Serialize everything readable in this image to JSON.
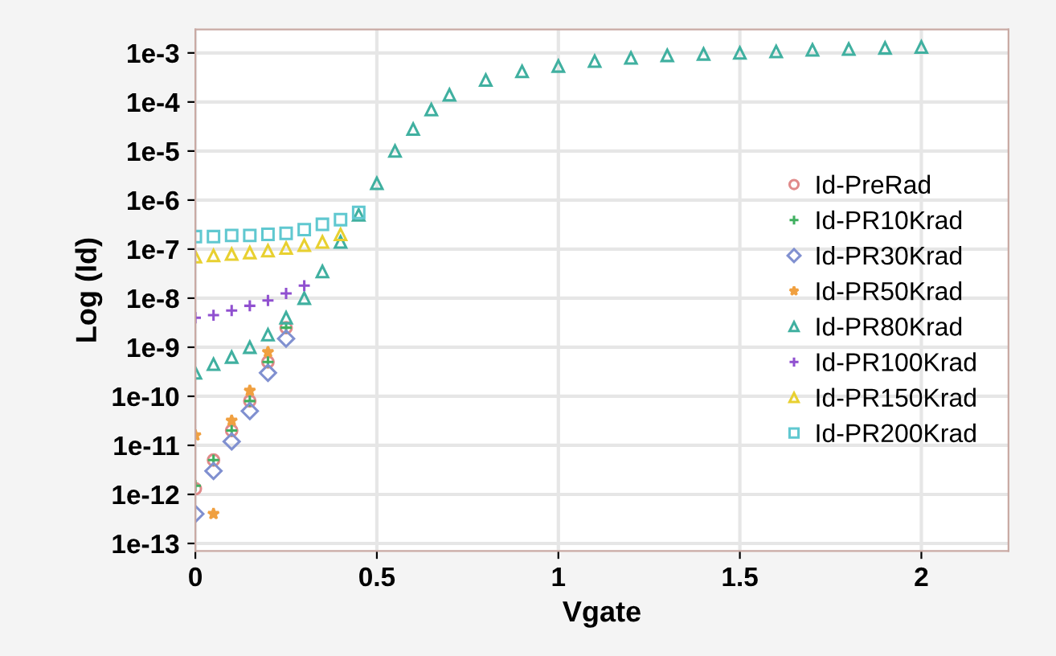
{
  "chart_data": {
    "type": "scatter",
    "xlabel": "Vgate",
    "ylabel": "Log (Id)",
    "log": "y",
    "grid": true,
    "legend": "right",
    "xlim": [
      0,
      2.24
    ],
    "xticks": [
      0,
      0.5,
      1,
      1.5,
      2
    ],
    "ylim": [
      7e-14,
      0.003
    ],
    "yticks": [
      {
        "value": 0.001,
        "label": "1e-3"
      },
      {
        "value": 0.0001,
        "label": "1e-4"
      },
      {
        "value": 1e-05,
        "label": "1e-5"
      },
      {
        "value": 1e-06,
        "label": "1e-6"
      },
      {
        "value": 1e-07,
        "label": "1e-7"
      },
      {
        "value": 1e-08,
        "label": "1e-8"
      },
      {
        "value": 1e-09,
        "label": "1e-9"
      },
      {
        "value": 1e-10,
        "label": "1e-10"
      },
      {
        "value": 1e-11,
        "label": "1e-11"
      },
      {
        "value": 1e-12,
        "label": "1e-12"
      },
      {
        "value": 1e-13,
        "label": "1e-13"
      }
    ],
    "x": [
      0,
      0.05,
      0.1,
      0.15,
      0.2,
      0.25,
      0.3,
      0.35,
      0.4,
      0.45,
      0.5,
      0.55,
      0.6,
      0.65,
      0.7,
      0.8,
      0.9,
      1.0,
      1.1,
      1.2,
      1.3,
      1.4,
      1.5,
      1.6,
      1.7,
      1.8,
      1.9,
      2.0
    ],
    "series": [
      {
        "name": "Id-PreRad",
        "color": "#e08a8a",
        "marker": "circle",
        "values": [
          1.3e-12,
          5e-12,
          2e-11,
          8e-11,
          5e-10,
          2.5e-09,
          null,
          null,
          null,
          null,
          null,
          null,
          null,
          null,
          null,
          null,
          null,
          null,
          null,
          null,
          null,
          null,
          null,
          null,
          null,
          null,
          null,
          null
        ]
      },
      {
        "name": "Id-PR10Krad",
        "color": "#40b060",
        "marker": "cross",
        "values": [
          1.5e-12,
          5e-12,
          2e-11,
          8e-11,
          5e-10,
          2.5e-09,
          null,
          null,
          null,
          null,
          null,
          null,
          null,
          null,
          null,
          null,
          null,
          null,
          null,
          null,
          null,
          null,
          null,
          null,
          null,
          null,
          null,
          null
        ]
      },
      {
        "name": "Id-PR30Krad",
        "color": "#8090d0",
        "marker": "diamond",
        "values": [
          4e-13,
          3e-12,
          1.2e-11,
          5e-11,
          3e-10,
          1.5e-09,
          null,
          null,
          null,
          null,
          null,
          null,
          null,
          null,
          null,
          null,
          null,
          null,
          null,
          null,
          null,
          null,
          null,
          null,
          null,
          null,
          null,
          null
        ]
      },
      {
        "name": "Id-PR50Krad",
        "color": "#f0a040",
        "marker": "star",
        "values": [
          1.6e-11,
          4e-13,
          3.2e-11,
          1.3e-10,
          8e-10,
          null,
          null,
          null,
          null,
          null,
          null,
          null,
          null,
          null,
          null,
          null,
          null,
          null,
          null,
          null,
          null,
          null,
          null,
          null,
          null,
          null,
          null,
          null
        ]
      },
      {
        "name": "Id-PR80Krad",
        "color": "#40b0a0",
        "marker": "triangle",
        "values": [
          3e-10,
          4.5e-10,
          6.3e-10,
          1e-09,
          1.8e-09,
          4e-09,
          1e-08,
          3.5e-08,
          1.4e-07,
          5e-07,
          2.2e-06,
          1e-05,
          2.8e-05,
          7e-05,
          0.00014,
          0.00028,
          0.00042,
          0.00054,
          0.00068,
          0.00079,
          0.00089,
          0.00095,
          0.001,
          0.00107,
          0.00115,
          0.0012,
          0.00126,
          0.00132
        ]
      },
      {
        "name": "Id-PR100Krad",
        "color": "#9050d0",
        "marker": "cross",
        "values": [
          4e-09,
          4.5e-09,
          5.6e-09,
          7e-09,
          9e-09,
          1.25e-08,
          1.8e-08,
          null,
          null,
          null,
          null,
          null,
          null,
          null,
          null,
          null,
          null,
          null,
          null,
          null,
          null,
          null,
          null,
          null,
          null,
          null,
          null,
          null
        ]
      },
      {
        "name": "Id-PR150Krad",
        "color": "#e8d030",
        "marker": "triangle",
        "values": [
          7e-08,
          7.4e-08,
          7.9e-08,
          8.5e-08,
          9.3e-08,
          1.05e-07,
          1.2e-07,
          1.4e-07,
          2e-07,
          null,
          null,
          null,
          null,
          null,
          null,
          null,
          null,
          null,
          null,
          null,
          null,
          null,
          null,
          null,
          null,
          null,
          null,
          null
        ]
      },
      {
        "name": "Id-PR200Krad",
        "color": "#60c8d0",
        "marker": "square",
        "values": [
          1.8e-07,
          1.8e-07,
          1.9e-07,
          1.9e-07,
          2e-07,
          2.1e-07,
          2.5e-07,
          3.2e-07,
          4e-07,
          5.6e-07,
          null,
          null,
          null,
          null,
          null,
          null,
          null,
          null,
          null,
          null,
          null,
          null,
          null,
          null,
          null,
          null,
          null,
          null
        ]
      }
    ]
  }
}
